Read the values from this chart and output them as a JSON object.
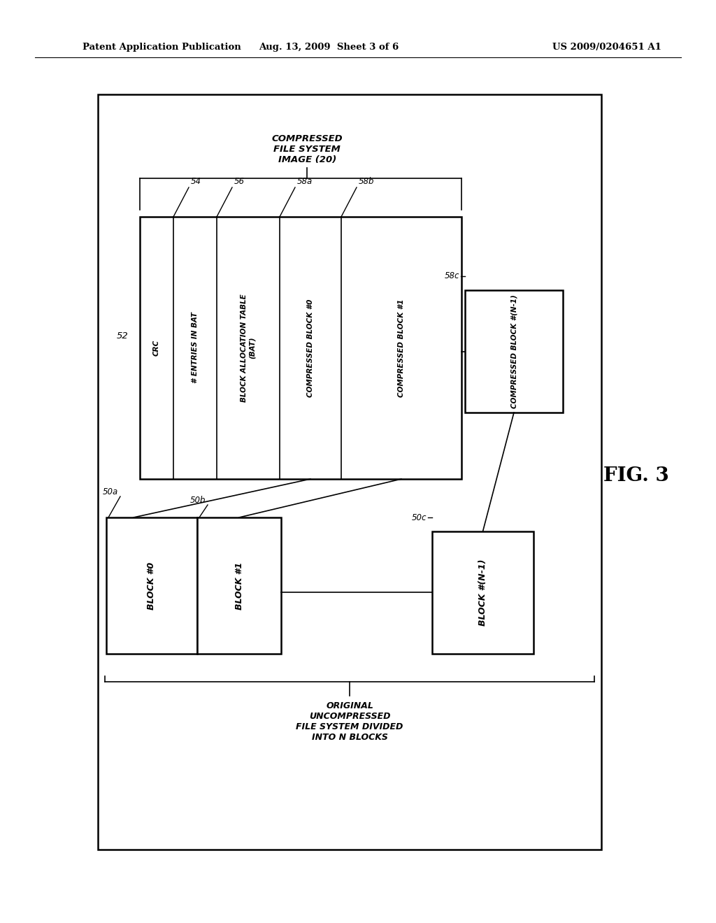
{
  "bg_color": "#ffffff",
  "header_left": "Patent Application Publication",
  "header_center": "Aug. 13, 2009  Sheet 3 of 6",
  "header_right": "US 2009/0204651 A1",
  "fig_label": "FIG. 3",
  "compressed_label": "COMPRESSED\nFILE SYSTEM\nIMAGE (20)",
  "original_label": "ORIGINAL\nUNCOMPRESSED\nFILE SYSTEM DIVIDED\nINTO N BLOCKS",
  "label_52": "52",
  "label_54": "54",
  "label_56": "56",
  "label_58a": "58a",
  "label_58b": "58b",
  "label_58c": "58c",
  "label_50a": "50a",
  "label_50b": "50b",
  "label_50c": "50c",
  "sec_labels": [
    "CRC",
    "# ENTRIES IN BAT",
    "BLOCK ALLOCATION TABLE\n(BAT)",
    "COMPRESSED BLOCK #0",
    "COMPRESSED BLOCK #1"
  ],
  "block0_label": "BLOCK #0",
  "block1_label": "BLOCK #1",
  "blockn_label": "BLOCK #(N-1)",
  "compressed_block_n_label": "COMPRESSED BLOCK #(N-1)"
}
